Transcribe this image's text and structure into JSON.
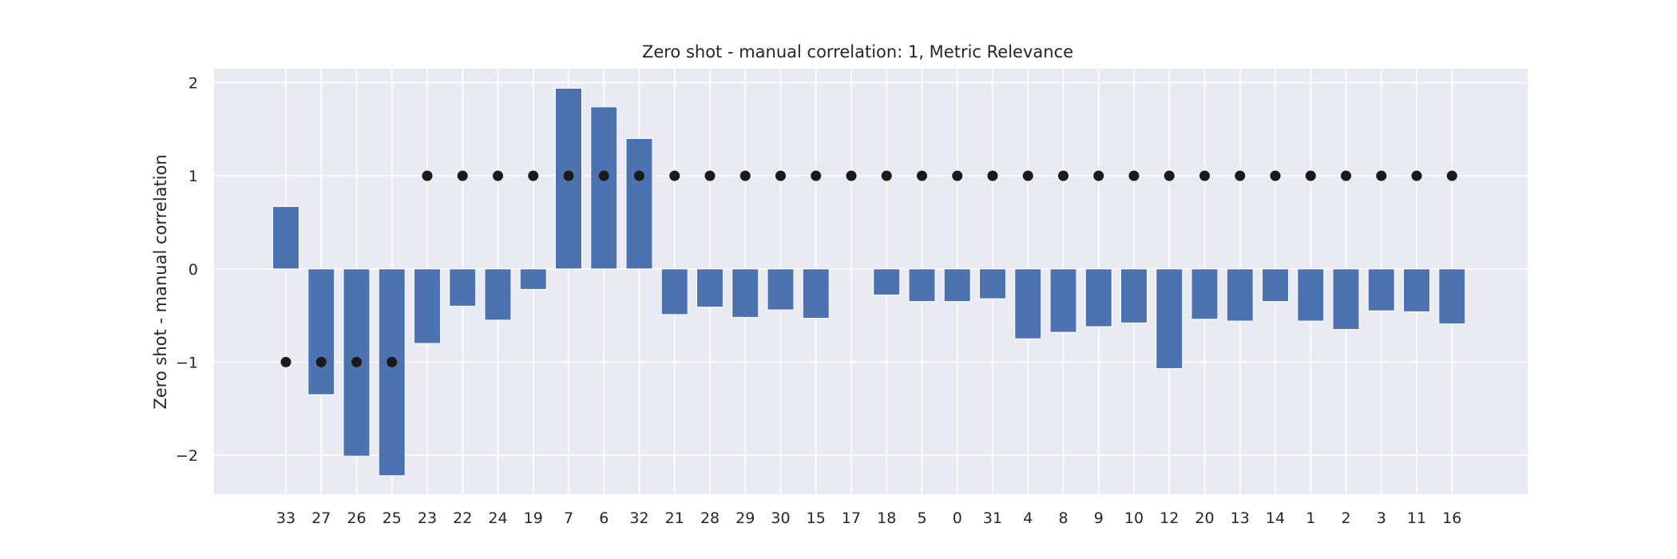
{
  "chart_data": {
    "type": "bar",
    "title": "Zero shot - manual correlation: 1, Metric Relevance",
    "xlabel": "",
    "ylabel": "Zero shot - manual correlation",
    "ylim": [
      -2.42,
      2.15
    ],
    "yticks": [
      -2,
      -1,
      0,
      1,
      2
    ],
    "ytick_labels": [
      "−2",
      "−1",
      "0",
      "1",
      "2"
    ],
    "grid": true,
    "categories": [
      "33",
      "27",
      "26",
      "25",
      "23",
      "22",
      "24",
      "19",
      "7",
      "6",
      "32",
      "21",
      "28",
      "29",
      "30",
      "15",
      "17",
      "18",
      "5",
      "0",
      "31",
      "4",
      "8",
      "9",
      "10",
      "12",
      "20",
      "13",
      "14",
      "1",
      "2",
      "3",
      "11",
      "16"
    ],
    "series": [
      {
        "kind": "bar",
        "values": [
          0.67,
          -1.35,
          -2.01,
          -2.22,
          -0.8,
          -0.4,
          -0.55,
          -0.22,
          1.94,
          1.74,
          1.4,
          -0.49,
          -0.41,
          -0.52,
          -0.44,
          -0.53,
          0.0,
          -0.28,
          -0.35,
          -0.35,
          -0.32,
          -0.75,
          -0.68,
          -0.62,
          -0.58,
          -1.07,
          -0.54,
          -0.56,
          -0.35,
          -0.56,
          -0.65,
          -0.45,
          -0.46,
          -0.59
        ],
        "color": "#4c72b0"
      },
      {
        "kind": "scatter",
        "values": [
          -1,
          -1,
          -1,
          -1,
          1,
          1,
          1,
          1,
          1,
          1,
          1,
          1,
          1,
          1,
          1,
          1,
          1,
          1,
          1,
          1,
          1,
          1,
          1,
          1,
          1,
          1,
          1,
          1,
          1,
          1,
          1,
          1,
          1,
          1
        ],
        "color": "#1a1a1a"
      }
    ]
  },
  "style": {
    "plot_bg": "#eaeaf2",
    "grid_color": "#ffffff"
  }
}
